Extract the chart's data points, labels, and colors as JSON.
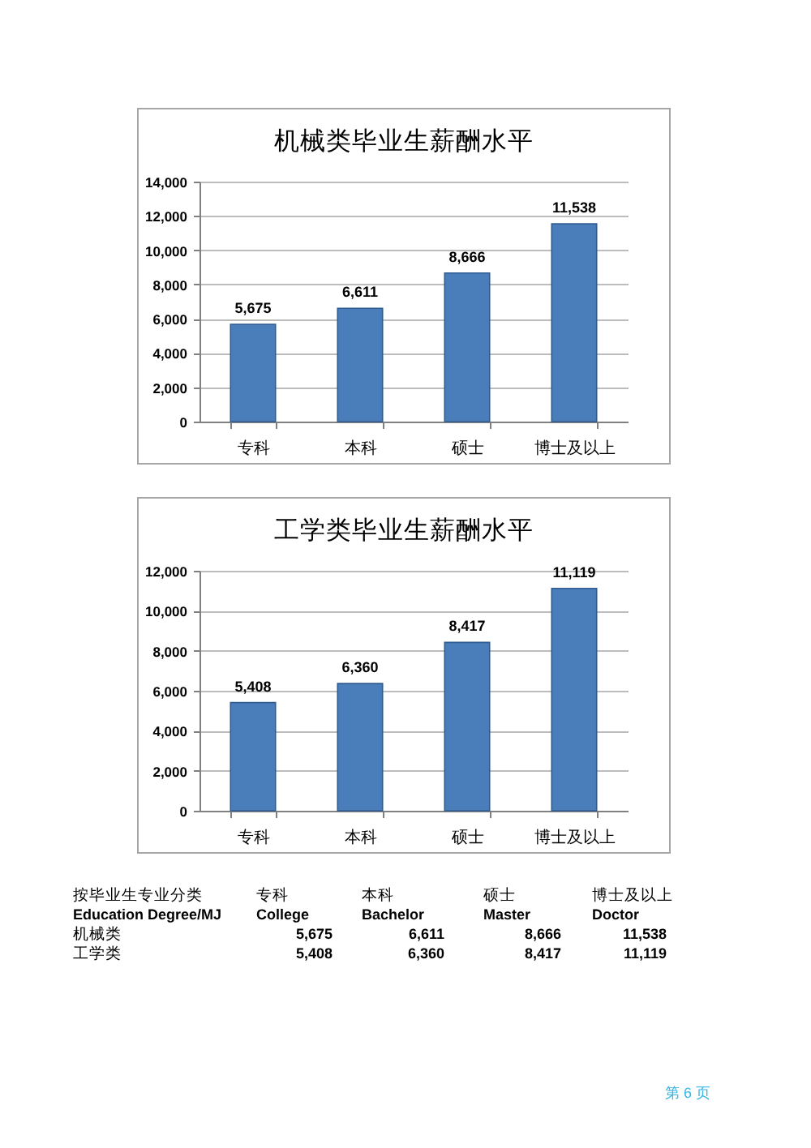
{
  "chart_data": [
    {
      "type": "bar",
      "title": "机械类毕业生薪酬水平",
      "categories": [
        "专科",
        "本科",
        "硕士",
        "博士及以上"
      ],
      "values": [
        5675,
        6611,
        8666,
        11538
      ],
      "value_labels": [
        "5,675",
        "6,611",
        "8,666",
        "11,538"
      ],
      "color": "#4a7ebb",
      "ylim": [
        0,
        14000
      ],
      "yticks": [
        0,
        {
          "value": 2000,
          "label": "2,000"
        },
        {
          "value": 4000,
          "label": "4,000"
        },
        {
          "value": 6000,
          "label": "6,000"
        },
        {
          "value": 8000,
          "label": "8,000"
        },
        {
          "value": 10000,
          "label": "10,000"
        },
        {
          "value": 12000,
          "label": "12,000"
        },
        {
          "value": 14000,
          "label": "14,000"
        }
      ],
      "grid": "y"
    },
    {
      "type": "bar",
      "title": "工学类毕业生薪酬水平",
      "categories": [
        "专科",
        "本科",
        "硕士",
        "博士及以上"
      ],
      "values": [
        5408,
        6360,
        8417,
        11119
      ],
      "value_labels": [
        "5,408",
        "6,360",
        "8,417",
        "11,119"
      ],
      "color": "#4a7ebb",
      "ylim": [
        0,
        12000
      ],
      "yticks": [
        0,
        {
          "value": 2000,
          "label": "2,000"
        },
        {
          "value": 4000,
          "label": "4,000"
        },
        {
          "value": 6000,
          "label": "6,000"
        },
        {
          "value": 8000,
          "label": "8,000"
        },
        {
          "value": 10000,
          "label": "10,000"
        },
        {
          "value": 12000,
          "label": "12,000"
        }
      ],
      "grid": "y"
    },
    {
      "type": "other",
      "title": "按毕业生专业分类",
      "subtitle": "Education Degree/MJ",
      "categories": [
        "专科",
        "本科",
        "硕士",
        "博士及以上"
      ],
      "annotations": [
        "College",
        "Bachelor",
        "Master",
        "Doctor",
        "第 6 页"
      ],
      "y_categories": [
        "机械类",
        "工学类"
      ],
      "cell_labels": [
        [
          "5,675",
          "6,611",
          "8,666",
          "11,538"
        ],
        [
          "5,408",
          "6,360",
          "8,417",
          "11,119"
        ]
      ]
    }
  ]
}
